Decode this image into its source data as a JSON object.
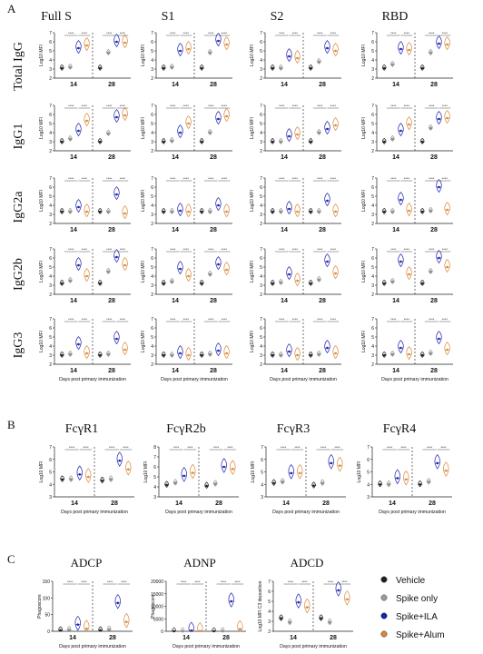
{
  "colors": {
    "vehicle": "#222222",
    "spike_only": "#9a9a9a",
    "spike_ila": "#1a22b0",
    "spike_alum": "#d9893a"
  },
  "section_a": {
    "label": "A",
    "columns": [
      "Full S",
      "S1",
      "S2",
      "RBD"
    ],
    "rows": [
      "Total IgG",
      "IgG1",
      "IgG2a",
      "IgG2b",
      "IgG3"
    ],
    "ylabel": "Log10 MFI",
    "days": [
      "14",
      "28"
    ],
    "xlabel": "Days post primary immunization",
    "yticks": [
      "7",
      "6",
      "5",
      "4",
      "3",
      "2"
    ]
  },
  "section_b": {
    "label": "B",
    "titles": [
      "FcγR1",
      "FcγR2b",
      "FcγR3",
      "FcγR4"
    ],
    "ylabel": "Log10 MFI",
    "days": [
      "14",
      "28"
    ],
    "xlabel": "Days post primary immunization",
    "yticks": [
      [
        "7",
        "6",
        "5",
        "4",
        "3"
      ],
      [
        "8",
        "7",
        "6",
        "5",
        "4",
        "3"
      ],
      [
        "7",
        "6",
        "5",
        "4",
        "3"
      ],
      [
        "7",
        "6",
        "5",
        "4",
        "3"
      ]
    ]
  },
  "section_c": {
    "label": "C",
    "titles": [
      "ADCP",
      "ADNP",
      "ADCD"
    ],
    "ylabels": [
      "Phagoscore",
      "Phagoscore",
      "Log10 MFI C3 deposition"
    ],
    "days": [
      "14",
      "28"
    ],
    "xlabel": "Days post primary immunization",
    "yticks": [
      [
        "150",
        "100",
        "50",
        "0"
      ],
      [
        "20000",
        "15000",
        "10000",
        "5000",
        "0"
      ],
      [
        "7",
        "6",
        "5",
        "4",
        "3",
        "2"
      ]
    ]
  },
  "legend": [
    "Vehicle",
    "Spike only",
    "Spike+ILA",
    "Spike+Alum"
  ],
  "significance_mark": "****",
  "chart_data": {
    "type": "violin",
    "groups": [
      "Vehicle",
      "Spike only",
      "Spike+ILA",
      "Spike+Alum"
    ],
    "days": [
      14,
      28
    ],
    "section_a": {
      "antigens": [
        "Full S",
        "S1",
        "S2",
        "RBD"
      ],
      "isotypes": [
        "Total IgG",
        "IgG1",
        "IgG2a",
        "IgG2b",
        "IgG3"
      ],
      "ylim": [
        2,
        7
      ],
      "medians": [
        [
          [
            3.1,
            3.2,
            5.3,
            5.6,
            3.1,
            4.8,
            6.0,
            5.9
          ],
          [
            3.1,
            3.2,
            5.0,
            5.2,
            3.1,
            4.8,
            6.1,
            5.7
          ],
          [
            3.1,
            3.1,
            4.4,
            4.2,
            3.1,
            3.8,
            5.3,
            5.0
          ],
          [
            3.1,
            3.5,
            5.2,
            5.1,
            3.1,
            4.8,
            5.8,
            5.7
          ]
        ],
        [
          [
            3.0,
            3.3,
            4.2,
            5.3,
            3.0,
            3.9,
            5.7,
            5.9
          ],
          [
            3.0,
            3.1,
            4.0,
            5.0,
            3.0,
            4.0,
            5.5,
            5.8
          ],
          [
            3.0,
            3.0,
            3.6,
            3.8,
            3.0,
            4.0,
            4.4,
            4.8
          ],
          [
            3.0,
            3.3,
            4.2,
            4.9,
            3.0,
            4.5,
            5.5,
            5.6
          ]
        ],
        [
          [
            3.3,
            3.3,
            3.8,
            3.3,
            3.3,
            3.3,
            5.2,
            3.1
          ],
          [
            3.3,
            3.3,
            3.4,
            3.3,
            3.3,
            3.3,
            4.0,
            3.3
          ],
          [
            3.3,
            3.3,
            3.6,
            3.3,
            3.3,
            3.3,
            4.5,
            3.3
          ],
          [
            3.3,
            3.3,
            4.6,
            3.4,
            3.3,
            3.4,
            6.0,
            3.5
          ]
        ],
        [
          [
            3.2,
            3.5,
            5.2,
            4.0,
            3.2,
            4.5,
            6.1,
            5.2
          ],
          [
            3.2,
            3.4,
            4.8,
            4.0,
            3.2,
            4.2,
            5.3,
            4.7
          ],
          [
            3.2,
            3.3,
            4.2,
            3.5,
            3.2,
            3.6,
            5.6,
            4.3
          ],
          [
            3.2,
            3.4,
            5.6,
            4.2,
            3.2,
            4.5,
            6.0,
            5.0
          ]
        ],
        [
          [
            3.0,
            3.1,
            4.2,
            3.2,
            3.0,
            3.1,
            4.8,
            3.6
          ],
          [
            3.0,
            3.0,
            3.2,
            3.0,
            3.0,
            3.1,
            3.5,
            3.2
          ],
          [
            3.0,
            3.0,
            3.4,
            3.0,
            3.0,
            3.1,
            3.8,
            3.2
          ],
          [
            3.0,
            3.1,
            3.8,
            3.1,
            3.0,
            3.2,
            4.8,
            3.6
          ]
        ]
      ]
    },
    "section_b": {
      "receptors": [
        "FcγR1",
        "FcγR2b",
        "FcγR3",
        "FcγR4"
      ],
      "ylim": [
        [
          3,
          7
        ],
        [
          3,
          8
        ],
        [
          3,
          7
        ],
        [
          3,
          7
        ]
      ],
      "medians": [
        [
          4.4,
          4.4,
          4.8,
          4.6,
          4.3,
          4.4,
          5.9,
          5.2
        ],
        [
          4.2,
          4.4,
          5.1,
          5.4,
          4.1,
          4.3,
          6.0,
          5.8
        ],
        [
          4.1,
          4.2,
          4.9,
          4.9,
          3.9,
          4.1,
          5.7,
          5.5
        ],
        [
          4.0,
          4.0,
          4.5,
          4.4,
          4.0,
          4.2,
          5.7,
          5.1
        ]
      ]
    },
    "section_c": {
      "assays": [
        "ADCP",
        "ADNP",
        "ADCD"
      ],
      "ylim": [
        [
          0,
          150
        ],
        [
          0,
          20000
        ],
        [
          2,
          7
        ]
      ],
      "medians": [
        [
          3,
          4,
          20,
          8,
          3,
          5,
          85,
          28
        ],
        [
          50,
          60,
          250,
          120,
          50,
          80,
          12000,
          900
        ],
        [
          3.3,
          2.9,
          4.9,
          4.4,
          3.3,
          2.9,
          6.1,
          5.2
        ]
      ]
    }
  }
}
